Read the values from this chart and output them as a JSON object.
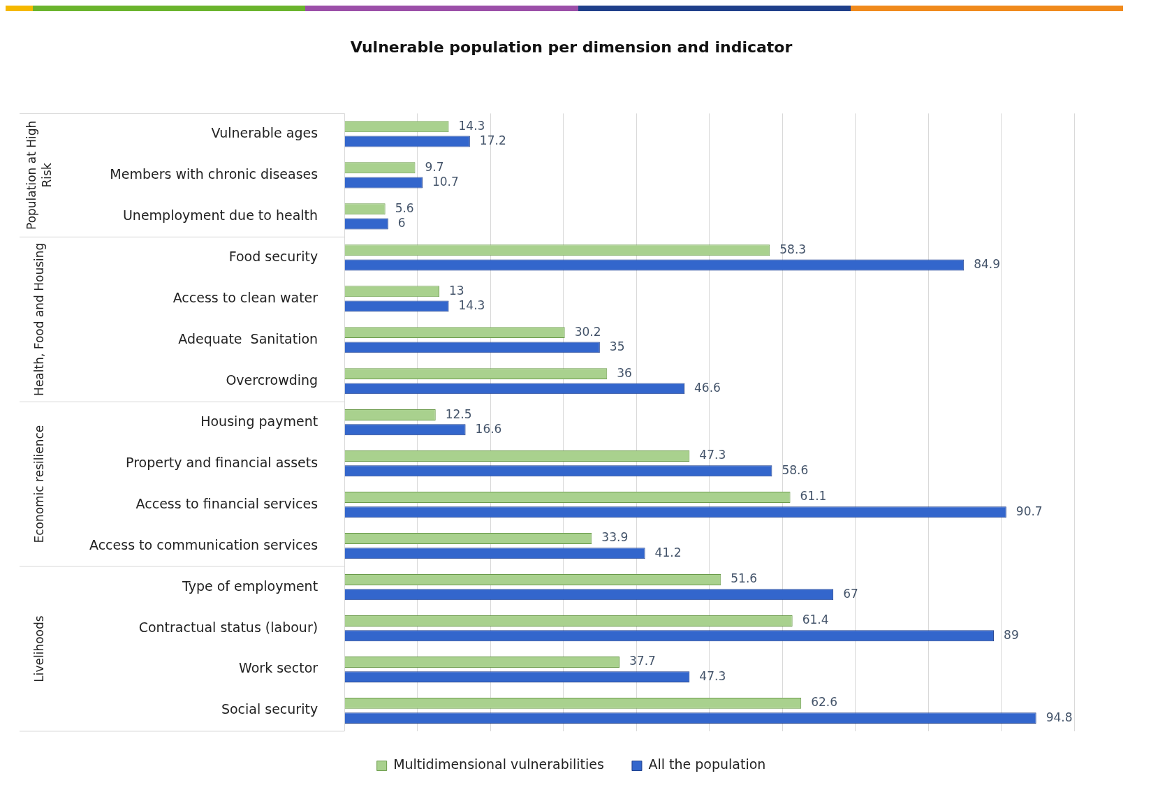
{
  "chart_data": {
    "type": "bar",
    "orientation": "horizontal",
    "title": "Vulnerable population per dimension and indicator",
    "categories": [
      "Vulnerable ages",
      "Members with chronic diseases",
      "Unemployment due to health",
      "Food security",
      "Access to clean water",
      "Adequate  Sanitation",
      "Overcrowding",
      "Housing payment",
      "Property and financial assets",
      "Access to financial services",
      "Access to communication services",
      "Type of employment",
      "Contractual status (labour)",
      "Work sector",
      "Social security"
    ],
    "series": [
      {
        "name": "Multidimensional vulnerabilities",
        "color": "#a9d18e",
        "values": [
          14.3,
          9.7,
          5.6,
          58.3,
          13,
          30.2,
          36,
          12.5,
          47.3,
          61.1,
          33.9,
          51.6,
          61.4,
          37.7,
          62.6
        ]
      },
      {
        "name": "All the population",
        "color": "#3366cc",
        "values": [
          17.2,
          10.7,
          6,
          84.9,
          14.3,
          35,
          46.6,
          16.6,
          58.6,
          90.7,
          41.2,
          67,
          89,
          47.3,
          94.8
        ]
      }
    ],
    "xlim": [
      0,
      100
    ],
    "xticks": [
      {
        "value": 0,
        "label": null
      },
      {
        "value": 10,
        "label": null
      },
      {
        "value": 20,
        "label": null
      },
      {
        "value": 30,
        "label": null
      },
      {
        "value": 40,
        "label": null
      },
      {
        "value": 50,
        "label": null
      },
      {
        "value": 60,
        "label": null
      },
      {
        "value": 70,
        "label": null
      },
      {
        "value": 80,
        "label": null
      },
      {
        "value": 90,
        "label": null
      },
      {
        "value": 100,
        "label": null
      }
    ],
    "tick_labels": "y",
    "grid": "x",
    "legend": "bottom",
    "data_labels": true,
    "annotations": [
      "Population at High Risk",
      "Health, Food and Housing",
      "Economic resilience",
      "Livelihoods"
    ]
  }
}
